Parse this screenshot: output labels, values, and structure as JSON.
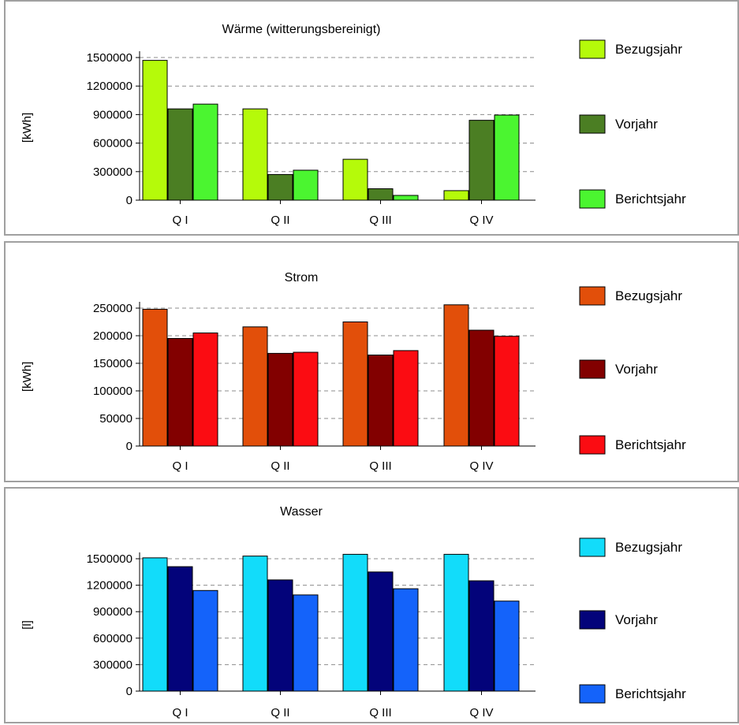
{
  "chart_data": [
    {
      "type": "bar",
      "title": "Wärme (witterungsbereinigt)",
      "ylabel": "[kWh]",
      "categories": [
        "Q I",
        "Q II",
        "Q III",
        "Q IV"
      ],
      "ylim": [
        0,
        1500000
      ],
      "yticks": [
        "1500000",
        "1200000",
        "900000",
        "600000",
        "300000",
        "0"
      ],
      "tickValues": [
        1500000,
        1200000,
        900000,
        600000,
        300000,
        0
      ],
      "grid": true,
      "legend_position": "right",
      "series": [
        {
          "name": "Bezugsjahr",
          "color": "#b5fa0a",
          "values": [
            1470000,
            960000,
            430000,
            100000
          ]
        },
        {
          "name": "Vorjahr",
          "color": "#4b7e23",
          "values": [
            960000,
            270000,
            120000,
            840000
          ]
        },
        {
          "name": "Berichtsjahr",
          "color": "#4bf530",
          "values": [
            1010000,
            315000,
            50000,
            895000
          ]
        }
      ]
    },
    {
      "type": "bar",
      "title": "Strom",
      "ylabel": "[kWh]",
      "categories": [
        "Q I",
        "Q II",
        "Q III",
        "Q IV"
      ],
      "ylim": [
        0,
        250000
      ],
      "yticks": [
        "250000",
        "200000",
        "150000",
        "100000",
        "50000",
        "0"
      ],
      "tickValues": [
        250000,
        200000,
        150000,
        100000,
        50000,
        0
      ],
      "grid": true,
      "legend_position": "right",
      "series": [
        {
          "name": "Bezugsjahr",
          "color": "#e24f0a",
          "values": [
            248000,
            216000,
            225000,
            256000
          ]
        },
        {
          "name": "Vorjahr",
          "color": "#820000",
          "values": [
            195000,
            168000,
            165000,
            210000
          ]
        },
        {
          "name": "Berichtsjahr",
          "color": "#fb0c12",
          "values": [
            205000,
            170000,
            173000,
            199000
          ]
        }
      ]
    },
    {
      "type": "bar",
      "title": "Wasser",
      "ylabel": "[l]",
      "categories": [
        "Q I",
        "Q II",
        "Q III",
        "Q IV"
      ],
      "ylim": [
        0,
        1500000
      ],
      "yticks": [
        "1500000",
        "1200000",
        "900000",
        "600000",
        "300000",
        "0"
      ],
      "tickValues": [
        1500000,
        1200000,
        900000,
        600000,
        300000,
        0
      ],
      "grid": true,
      "legend_position": "right",
      "series": [
        {
          "name": "Bezugsjahr",
          "color": "#12dcfa",
          "values": [
            1510000,
            1530000,
            1550000,
            1550000
          ]
        },
        {
          "name": "Vorjahr",
          "color": "#03037a",
          "values": [
            1410000,
            1260000,
            1350000,
            1250000
          ]
        },
        {
          "name": "Berichtsjahr",
          "color": "#1463fa",
          "values": [
            1140000,
            1090000,
            1160000,
            1020000
          ]
        }
      ]
    }
  ]
}
